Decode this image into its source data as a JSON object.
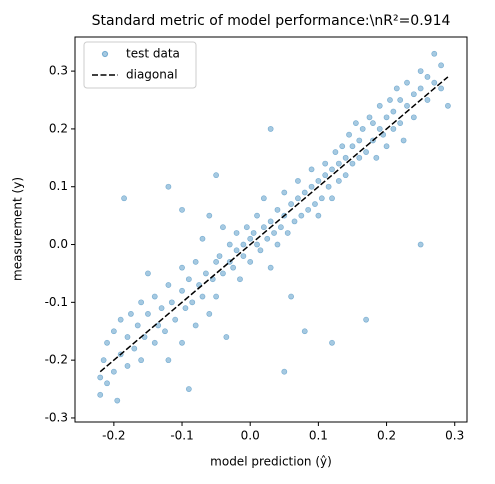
{
  "chart_data": {
    "type": "scatter",
    "title": "Standard metric of model performance:\\nR²=0.914",
    "x_label": "model prediction (ŷ)",
    "y_label": "measurement (y)",
    "xlim": [
      -0.257,
      0.318
    ],
    "ylim": [
      -0.307,
      0.359
    ],
    "xticks": [
      -0.2,
      -0.1,
      {
        "value": 0,
        "label": "0.0"
      },
      0.1,
      0.2,
      0.3
    ],
    "yticks": [
      -0.3,
      -0.2,
      -0.1,
      {
        "value": 0,
        "label": "0.0"
      },
      0.1,
      0.2,
      0.3
    ],
    "legend": "upper left",
    "series": [
      {
        "name": "test data",
        "color": "#1f77b4",
        "marker": "o",
        "x": [
          -0.22,
          -0.22,
          -0.215,
          -0.21,
          -0.21,
          -0.2,
          -0.2,
          -0.195,
          -0.19,
          -0.19,
          -0.185,
          -0.18,
          -0.18,
          -0.175,
          -0.17,
          -0.165,
          -0.16,
          -0.16,
          -0.155,
          -0.15,
          -0.15,
          -0.14,
          -0.14,
          -0.135,
          -0.13,
          -0.125,
          -0.12,
          -0.12,
          -0.115,
          -0.11,
          -0.1,
          -0.1,
          -0.1,
          -0.095,
          -0.09,
          -0.09,
          -0.085,
          -0.08,
          -0.08,
          -0.075,
          -0.07,
          -0.07,
          -0.065,
          -0.06,
          -0.06,
          -0.055,
          -0.05,
          -0.05,
          -0.045,
          -0.04,
          -0.04,
          -0.035,
          -0.03,
          -0.03,
          -0.025,
          -0.02,
          -0.02,
          -0.015,
          -0.01,
          -0.01,
          -0.005,
          0.0,
          0.0,
          0.005,
          0.01,
          0.01,
          0.015,
          0.02,
          0.02,
          0.025,
          0.03,
          0.03,
          0.035,
          0.04,
          0.04,
          0.045,
          0.05,
          0.05,
          0.055,
          0.06,
          0.06,
          0.065,
          0.07,
          0.07,
          0.075,
          0.08,
          0.08,
          0.085,
          0.09,
          0.09,
          0.095,
          0.1,
          0.1,
          0.105,
          0.11,
          0.11,
          0.115,
          0.12,
          0.12,
          0.125,
          0.13,
          0.13,
          0.135,
          0.14,
          0.14,
          0.145,
          0.15,
          0.15,
          0.155,
          0.16,
          0.16,
          0.165,
          0.17,
          0.17,
          0.175,
          0.18,
          0.18,
          0.185,
          0.19,
          0.19,
          0.195,
          0.2,
          0.2,
          0.205,
          0.21,
          0.21,
          0.215,
          0.22,
          0.22,
          0.225,
          0.23,
          0.23,
          0.24,
          0.24,
          0.25,
          0.25,
          0.26,
          0.26,
          0.27,
          0.27,
          0.28,
          0.28,
          0.29,
          -0.12,
          -0.05,
          0.03,
          0.12,
          -0.1,
          0.25,
          0.05
        ],
        "values": [
          -0.23,
          -0.26,
          -0.2,
          -0.17,
          -0.24,
          -0.15,
          -0.22,
          -0.27,
          -0.19,
          -0.13,
          0.08,
          -0.16,
          -0.21,
          -0.12,
          -0.18,
          -0.14,
          -0.1,
          -0.2,
          -0.16,
          -0.12,
          -0.05,
          -0.17,
          -0.09,
          -0.14,
          -0.11,
          -0.15,
          -0.07,
          -0.2,
          -0.1,
          -0.13,
          -0.08,
          -0.04,
          -0.17,
          -0.11,
          -0.06,
          -0.25,
          -0.1,
          -0.03,
          -0.14,
          -0.07,
          -0.09,
          0.01,
          -0.05,
          -0.12,
          0.05,
          -0.06,
          -0.03,
          -0.09,
          -0.02,
          -0.05,
          0.03,
          -0.16,
          -0.03,
          0.0,
          -0.04,
          -0.01,
          0.02,
          -0.06,
          0.0,
          -0.02,
          0.03,
          0.01,
          -0.03,
          0.02,
          0.0,
          0.05,
          -0.01,
          0.03,
          0.08,
          0.01,
          0.04,
          -0.04,
          0.02,
          0.06,
          0.0,
          0.03,
          0.05,
          0.09,
          0.02,
          0.07,
          -0.09,
          0.04,
          0.08,
          0.11,
          0.05,
          0.09,
          -0.15,
          0.06,
          0.1,
          0.13,
          0.07,
          0.11,
          0.05,
          0.08,
          0.12,
          0.14,
          0.1,
          0.13,
          0.08,
          0.16,
          0.11,
          0.14,
          0.17,
          0.12,
          0.15,
          0.19,
          0.14,
          0.17,
          0.21,
          0.15,
          0.18,
          0.2,
          0.16,
          -0.13,
          0.22,
          0.18,
          0.21,
          0.15,
          0.2,
          0.24,
          0.19,
          0.22,
          0.17,
          0.25,
          0.2,
          0.23,
          0.27,
          0.21,
          0.25,
          0.18,
          0.24,
          0.28,
          0.22,
          0.26,
          0.27,
          0.3,
          0.25,
          0.29,
          0.28,
          0.33,
          0.27,
          0.31,
          0.24,
          0.1,
          0.12,
          0.2,
          -0.17,
          0.06,
          0.0,
          -0.22
        ]
      },
      {
        "name": "diagonal",
        "color": "#000000",
        "linestyle": "dashed",
        "x": [
          -0.22,
          0.29
        ],
        "values": [
          -0.22,
          0.29
        ]
      }
    ]
  }
}
